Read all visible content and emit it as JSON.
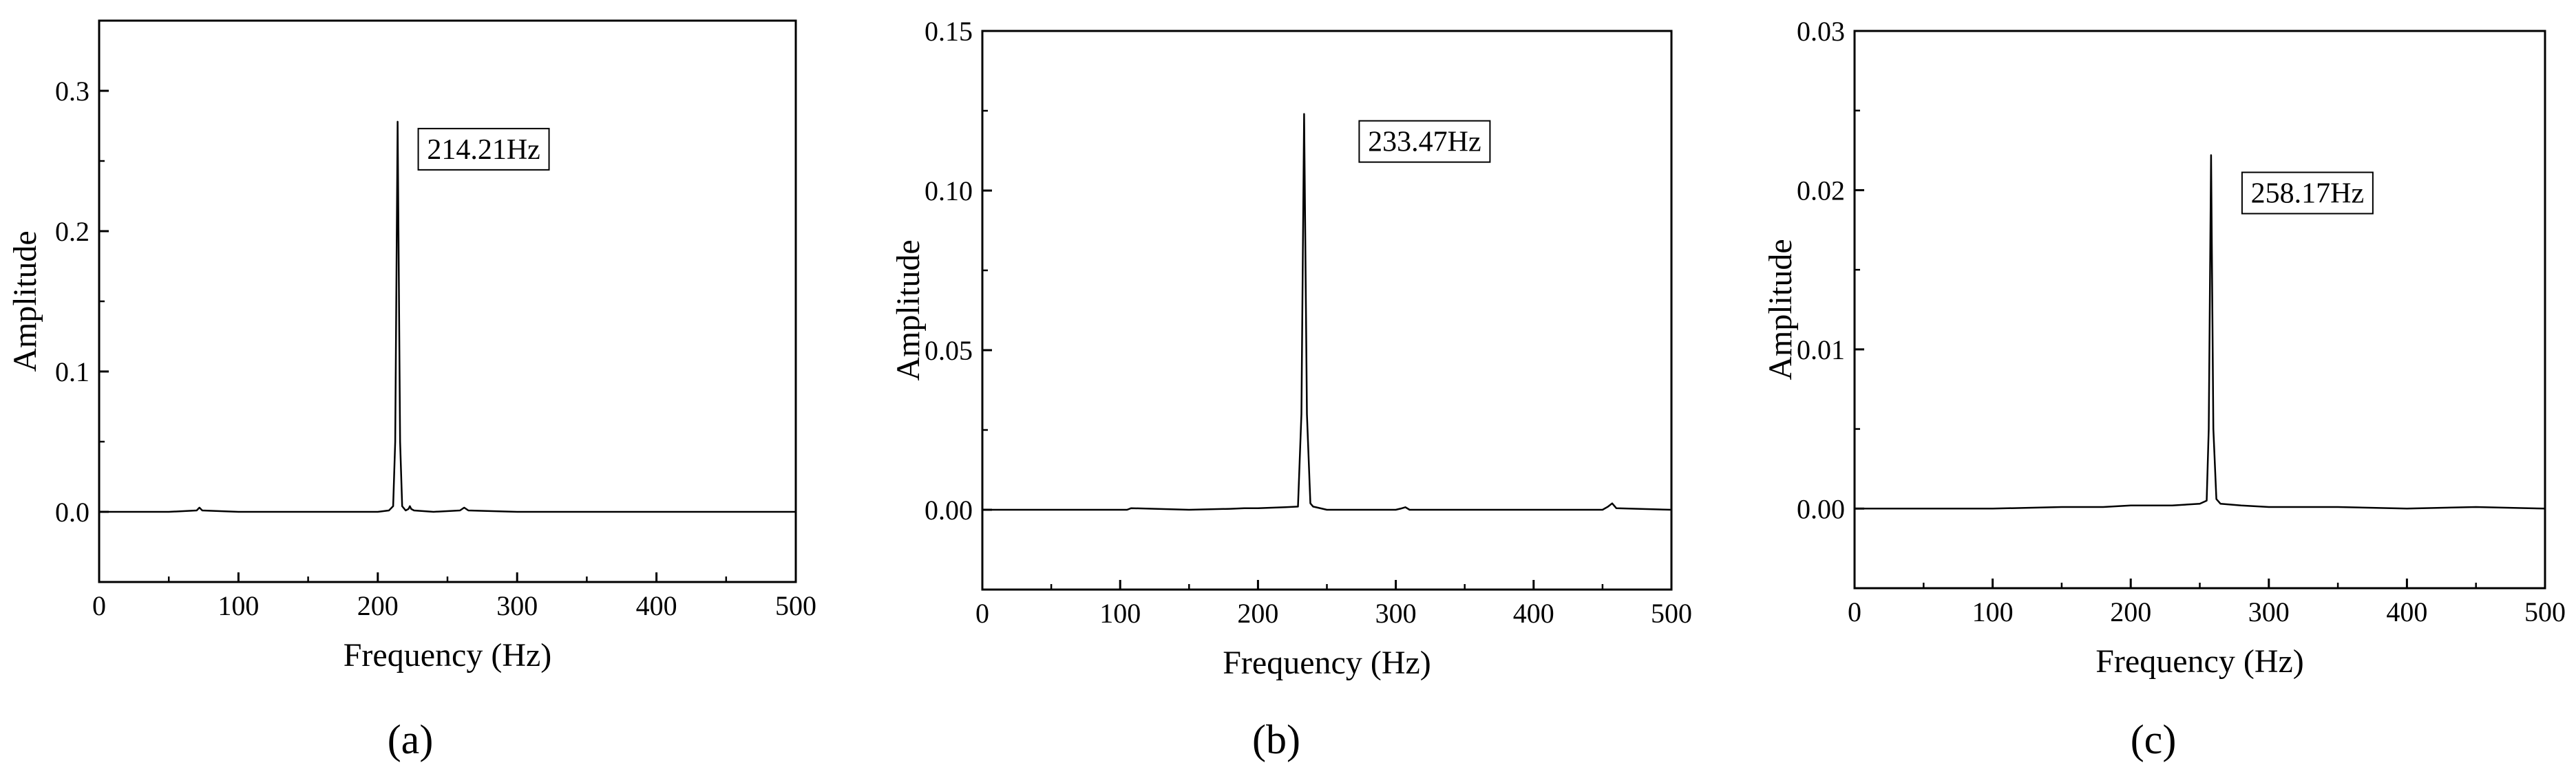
{
  "chart_data": [
    {
      "type": "line",
      "panel_label": "(a)",
      "xlabel": "Frequency (Hz)",
      "ylabel": "Amplitude",
      "xlim": [
        0,
        500
      ],
      "ylim": [
        -0.05,
        0.35
      ],
      "xticks": [
        0,
        100,
        200,
        300,
        400,
        500
      ],
      "xtick_labels": [
        "0",
        "100",
        "200",
        "300",
        "400",
        "500"
      ],
      "yticks": [
        0.0,
        0.1,
        0.2,
        0.3
      ],
      "ytick_labels": [
        "0.0",
        "0.1",
        "0.2",
        "0.3"
      ],
      "grid": false,
      "annotation": {
        "text": "214.21Hz",
        "x": 214.21,
        "y": 0.278
      },
      "series": [
        {
          "x": [
            0,
            50,
            70,
            72,
            74,
            100,
            150,
            200,
            208,
            211,
            212.5,
            214.21,
            216,
            217.5,
            220,
            222,
            223,
            224,
            226,
            240,
            259,
            262,
            265,
            300,
            350,
            400,
            450,
            500
          ],
          "values": [
            0,
            0,
            0.001,
            0.003,
            0.001,
            0,
            0,
            0,
            0.001,
            0.004,
            0.05,
            0.278,
            0.05,
            0.004,
            0.001,
            0.002,
            0.004,
            0.002,
            0.001,
            0,
            0.001,
            0.003,
            0.001,
            0,
            0,
            0,
            0,
            0
          ]
        }
      ]
    },
    {
      "type": "line",
      "panel_label": "(b)",
      "xlabel": "Frequency (Hz)",
      "ylabel": "Amplitude",
      "xlim": [
        0,
        500
      ],
      "ylim": [
        -0.025,
        0.15
      ],
      "xticks": [
        0,
        100,
        200,
        300,
        400,
        500
      ],
      "xtick_labels": [
        "0",
        "100",
        "200",
        "300",
        "400",
        "500"
      ],
      "yticks": [
        0.0,
        0.05,
        0.1,
        0.15
      ],
      "ytick_labels": [
        "0.00",
        "0.05",
        "0.10",
        "0.15"
      ],
      "grid": false,
      "annotation": {
        "text": "233.47Hz",
        "x": 233.47,
        "y": 0.124
      },
      "series": [
        {
          "x": [
            0,
            100,
            105,
            108,
            150,
            180,
            190,
            200,
            220,
            229,
            231.5,
            233.47,
            235.5,
            238,
            240,
            250,
            300,
            304,
            307,
            310,
            350,
            400,
            450,
            454,
            457,
            460,
            500
          ],
          "values": [
            0,
            0,
            0,
            0.0005,
            0,
            0.0003,
            0.0005,
            0.0005,
            0.0008,
            0.001,
            0.03,
            0.124,
            0.03,
            0.002,
            0.001,
            0,
            0,
            0.0004,
            0.0008,
            0,
            0,
            0,
            0,
            0.001,
            0.002,
            0.0005,
            0
          ]
        }
      ]
    },
    {
      "type": "line",
      "panel_label": "(c)",
      "xlabel": "Frequency (Hz)",
      "ylabel": "Amplitude",
      "xlim": [
        0,
        500
      ],
      "ylim": [
        -0.005,
        0.03
      ],
      "xticks": [
        0,
        100,
        200,
        300,
        400,
        500
      ],
      "xtick_labels": [
        "0",
        "100",
        "200",
        "300",
        "400",
        "500"
      ],
      "yticks": [
        0.0,
        0.01,
        0.02,
        0.03
      ],
      "ytick_labels": [
        "0.00",
        "0.01",
        "0.02",
        "0.03"
      ],
      "grid": false,
      "annotation": {
        "text": "258.17Hz",
        "x": 258.17,
        "y": 0.0222
      },
      "series": [
        {
          "x": [
            0,
            100,
            150,
            180,
            200,
            230,
            250,
            255,
            256.5,
            258.17,
            259.8,
            262,
            265,
            280,
            300,
            350,
            400,
            450,
            500
          ],
          "values": [
            0,
            0,
            0.0001,
            0.0001,
            0.0002,
            0.0002,
            0.0003,
            0.0005,
            0.005,
            0.0222,
            0.005,
            0.0006,
            0.0003,
            0.0002,
            0.0001,
            0.0001,
            0,
            0.0001,
            0
          ]
        }
      ]
    }
  ]
}
